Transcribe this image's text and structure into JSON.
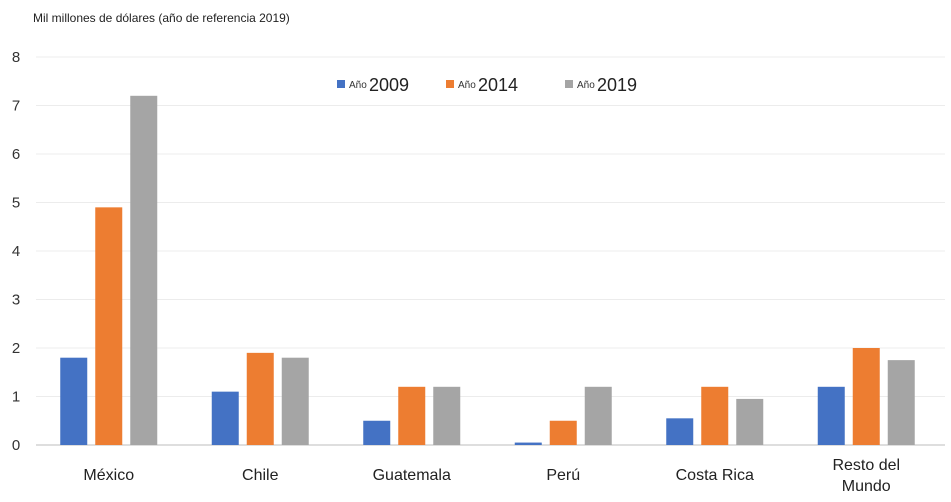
{
  "chart_data": {
    "type": "bar",
    "ylabel": "Mil millones de dólares (año de referencia 2019)",
    "categories": [
      [
        "México"
      ],
      [
        "Chile"
      ],
      [
        "Guatemala"
      ],
      [
        "Perú"
      ],
      [
        "Costa Rica"
      ],
      [
        "Resto del",
        "Mundo"
      ]
    ],
    "series": [
      {
        "prefix": "Año",
        "name": "2009",
        "color": "#4472c4",
        "values": [
          1.8,
          1.1,
          0.5,
          0.05,
          0.55,
          1.2
        ]
      },
      {
        "prefix": "Año",
        "name": "2014",
        "color": "#ed7d31",
        "values": [
          4.9,
          1.9,
          1.2,
          0.5,
          1.2,
          2.0
        ]
      },
      {
        "prefix": "Año",
        "name": "2019",
        "color": "#a5a5a5",
        "values": [
          7.2,
          1.8,
          1.2,
          1.2,
          0.95,
          1.75
        ]
      }
    ],
    "ylim": [
      0,
      8
    ],
    "yticks": [
      0,
      1,
      2,
      3,
      4,
      5,
      6,
      7,
      8
    ],
    "grid": true,
    "legend_position": "top-center"
  }
}
